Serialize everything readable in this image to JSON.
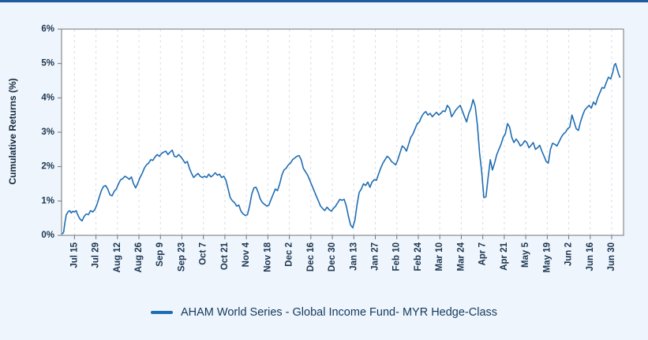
{
  "page": {
    "background_color": "#eef5fc",
    "accent_border_color": "#1e5c9e"
  },
  "chart_data": {
    "type": "line",
    "title": "",
    "xlabel": "",
    "ylabel": "Cumulative Returns (%)",
    "ylim": [
      0,
      6
    ],
    "yticks": [
      0,
      1,
      2,
      3,
      4,
      5,
      6
    ],
    "ytick_labels": [
      "0%",
      "1%",
      "2%",
      "3%",
      "4%",
      "5%",
      "6%"
    ],
    "xlim": [
      -0.6,
      25.55
    ],
    "x_tick_labels": [
      "Jul 15",
      "Jul 29",
      "Aug 12",
      "Aug 26",
      "Sep 9",
      "Sep 23",
      "Oct 7",
      "Oct 21",
      "Nov 4",
      "Nov 18",
      "Dec 2",
      "Dec 16",
      "Dec 30",
      "Jan 13",
      "Jan 27",
      "Feb 10",
      "Feb 24",
      "Mar 10",
      "Mar 24",
      "Apr 7",
      "Apr 21",
      "May 5",
      "May 19",
      "Jun 2",
      "Jun 16",
      "Jun 30"
    ],
    "grid": {
      "vertical_dashed": true,
      "horizontal": false,
      "color": "#d7dde2"
    },
    "axis": {
      "line_color": "#70757a",
      "label_color": "#1c3550"
    },
    "plot_background": "#ffffff",
    "legend_position": "bottom",
    "series": [
      {
        "name": "AHAM World Series - Global Income Fund- MYR Hedge-Class",
        "color": "#1f6db4",
        "points": [
          [
            -0.55,
            0.05
          ],
          [
            -0.5,
            0.1
          ],
          [
            -0.45,
            0.35
          ],
          [
            -0.38,
            0.6
          ],
          [
            -0.3,
            0.68
          ],
          [
            -0.22,
            0.72
          ],
          [
            -0.15,
            0.65
          ],
          [
            -0.08,
            0.7
          ],
          [
            0,
            0.68
          ],
          [
            0.08,
            0.72
          ],
          [
            0.15,
            0.6
          ],
          [
            0.25,
            0.48
          ],
          [
            0.35,
            0.42
          ],
          [
            0.45,
            0.55
          ],
          [
            0.55,
            0.62
          ],
          [
            0.65,
            0.6
          ],
          [
            0.75,
            0.72
          ],
          [
            0.85,
            0.68
          ],
          [
            0.95,
            0.75
          ],
          [
            1.05,
            0.9
          ],
          [
            1.15,
            1.1
          ],
          [
            1.25,
            1.3
          ],
          [
            1.35,
            1.42
          ],
          [
            1.45,
            1.45
          ],
          [
            1.55,
            1.35
          ],
          [
            1.65,
            1.18
          ],
          [
            1.75,
            1.15
          ],
          [
            1.85,
            1.28
          ],
          [
            1.95,
            1.35
          ],
          [
            2.05,
            1.5
          ],
          [
            2.15,
            1.62
          ],
          [
            2.25,
            1.65
          ],
          [
            2.35,
            1.72
          ],
          [
            2.45,
            1.68
          ],
          [
            2.55,
            1.63
          ],
          [
            2.65,
            1.7
          ],
          [
            2.75,
            1.5
          ],
          [
            2.85,
            1.38
          ],
          [
            2.95,
            1.52
          ],
          [
            3.05,
            1.68
          ],
          [
            3.15,
            1.8
          ],
          [
            3.25,
            1.95
          ],
          [
            3.35,
            2.05
          ],
          [
            3.45,
            2.1
          ],
          [
            3.55,
            2.2
          ],
          [
            3.65,
            2.18
          ],
          [
            3.75,
            2.28
          ],
          [
            3.85,
            2.35
          ],
          [
            3.95,
            2.3
          ],
          [
            4.05,
            2.38
          ],
          [
            4.15,
            2.42
          ],
          [
            4.25,
            2.45
          ],
          [
            4.35,
            2.35
          ],
          [
            4.45,
            2.42
          ],
          [
            4.55,
            2.48
          ],
          [
            4.65,
            2.3
          ],
          [
            4.75,
            2.28
          ],
          [
            4.85,
            2.35
          ],
          [
            4.95,
            2.28
          ],
          [
            5.05,
            2.2
          ],
          [
            5.15,
            2.1
          ],
          [
            5.25,
            2.15
          ],
          [
            5.35,
            1.95
          ],
          [
            5.45,
            1.8
          ],
          [
            5.55,
            1.68
          ],
          [
            5.65,
            1.75
          ],
          [
            5.75,
            1.8
          ],
          [
            5.85,
            1.72
          ],
          [
            5.95,
            1.68
          ],
          [
            6.05,
            1.72
          ],
          [
            6.15,
            1.68
          ],
          [
            6.25,
            1.78
          ],
          [
            6.35,
            1.7
          ],
          [
            6.45,
            1.75
          ],
          [
            6.55,
            1.82
          ],
          [
            6.65,
            1.75
          ],
          [
            6.75,
            1.78
          ],
          [
            6.85,
            1.68
          ],
          [
            6.95,
            1.72
          ],
          [
            7.05,
            1.6
          ],
          [
            7.15,
            1.35
          ],
          [
            7.25,
            1.1
          ],
          [
            7.35,
            1.0
          ],
          [
            7.45,
            0.95
          ],
          [
            7.55,
            0.85
          ],
          [
            7.65,
            0.88
          ],
          [
            7.75,
            0.7
          ],
          [
            7.85,
            0.62
          ],
          [
            7.95,
            0.58
          ],
          [
            8.05,
            0.6
          ],
          [
            8.15,
            0.85
          ],
          [
            8.25,
            1.2
          ],
          [
            8.35,
            1.38
          ],
          [
            8.45,
            1.4
          ],
          [
            8.55,
            1.25
          ],
          [
            8.65,
            1.05
          ],
          [
            8.75,
            0.95
          ],
          [
            8.85,
            0.9
          ],
          [
            8.95,
            0.85
          ],
          [
            9.05,
            0.88
          ],
          [
            9.15,
            1.05
          ],
          [
            9.25,
            1.2
          ],
          [
            9.35,
            1.35
          ],
          [
            9.45,
            1.3
          ],
          [
            9.55,
            1.5
          ],
          [
            9.65,
            1.75
          ],
          [
            9.75,
            1.9
          ],
          [
            9.85,
            1.95
          ],
          [
            9.95,
            2.05
          ],
          [
            10.05,
            2.1
          ],
          [
            10.15,
            2.2
          ],
          [
            10.25,
            2.25
          ],
          [
            10.35,
            2.3
          ],
          [
            10.45,
            2.32
          ],
          [
            10.55,
            2.2
          ],
          [
            10.65,
            1.95
          ],
          [
            10.75,
            1.85
          ],
          [
            10.85,
            1.75
          ],
          [
            10.95,
            1.6
          ],
          [
            11.05,
            1.45
          ],
          [
            11.15,
            1.3
          ],
          [
            11.25,
            1.15
          ],
          [
            11.35,
            1.0
          ],
          [
            11.45,
            0.85
          ],
          [
            11.55,
            0.78
          ],
          [
            11.65,
            0.72
          ],
          [
            11.75,
            0.82
          ],
          [
            11.85,
            0.75
          ],
          [
            11.95,
            0.7
          ],
          [
            12.05,
            0.78
          ],
          [
            12.15,
            0.85
          ],
          [
            12.25,
            0.95
          ],
          [
            12.35,
            1.05
          ],
          [
            12.45,
            1.02
          ],
          [
            12.55,
            1.05
          ],
          [
            12.65,
            0.85
          ],
          [
            12.75,
            0.55
          ],
          [
            12.85,
            0.3
          ],
          [
            12.95,
            0.22
          ],
          [
            13.05,
            0.45
          ],
          [
            13.15,
            0.9
          ],
          [
            13.25,
            1.25
          ],
          [
            13.35,
            1.35
          ],
          [
            13.45,
            1.5
          ],
          [
            13.55,
            1.45
          ],
          [
            13.65,
            1.55
          ],
          [
            13.75,
            1.4
          ],
          [
            13.85,
            1.55
          ],
          [
            13.95,
            1.62
          ],
          [
            14.05,
            1.6
          ],
          [
            14.15,
            1.78
          ],
          [
            14.25,
            1.95
          ],
          [
            14.35,
            2.1
          ],
          [
            14.45,
            2.2
          ],
          [
            14.55,
            2.3
          ],
          [
            14.65,
            2.25
          ],
          [
            14.75,
            2.15
          ],
          [
            14.85,
            2.1
          ],
          [
            14.95,
            2.05
          ],
          [
            15.05,
            2.2
          ],
          [
            15.15,
            2.4
          ],
          [
            15.25,
            2.6
          ],
          [
            15.35,
            2.55
          ],
          [
            15.45,
            2.45
          ],
          [
            15.55,
            2.65
          ],
          [
            15.65,
            2.85
          ],
          [
            15.75,
            2.95
          ],
          [
            15.85,
            3.1
          ],
          [
            15.95,
            3.25
          ],
          [
            16.05,
            3.3
          ],
          [
            16.15,
            3.45
          ],
          [
            16.25,
            3.55
          ],
          [
            16.35,
            3.6
          ],
          [
            16.45,
            3.5
          ],
          [
            16.55,
            3.55
          ],
          [
            16.65,
            3.45
          ],
          [
            16.75,
            3.52
          ],
          [
            16.85,
            3.58
          ],
          [
            16.95,
            3.5
          ],
          [
            17.05,
            3.55
          ],
          [
            17.15,
            3.62
          ],
          [
            17.25,
            3.6
          ],
          [
            17.35,
            3.78
          ],
          [
            17.45,
            3.7
          ],
          [
            17.55,
            3.45
          ],
          [
            17.65,
            3.55
          ],
          [
            17.75,
            3.65
          ],
          [
            17.85,
            3.72
          ],
          [
            17.95,
            3.78
          ],
          [
            18.05,
            3.62
          ],
          [
            18.15,
            3.45
          ],
          [
            18.25,
            3.3
          ],
          [
            18.35,
            3.55
          ],
          [
            18.45,
            3.7
          ],
          [
            18.55,
            3.95
          ],
          [
            18.65,
            3.75
          ],
          [
            18.75,
            3.2
          ],
          [
            18.85,
            2.4
          ],
          [
            18.95,
            1.85
          ],
          [
            19.05,
            1.1
          ],
          [
            19.15,
            1.12
          ],
          [
            19.25,
            1.7
          ],
          [
            19.35,
            2.2
          ],
          [
            19.45,
            1.9
          ],
          [
            19.55,
            2.1
          ],
          [
            19.65,
            2.35
          ],
          [
            19.75,
            2.5
          ],
          [
            19.85,
            2.65
          ],
          [
            19.95,
            2.85
          ],
          [
            20.05,
            2.95
          ],
          [
            20.15,
            3.25
          ],
          [
            20.25,
            3.15
          ],
          [
            20.35,
            2.85
          ],
          [
            20.45,
            2.7
          ],
          [
            20.55,
            2.8
          ],
          [
            20.65,
            2.72
          ],
          [
            20.75,
            2.6
          ],
          [
            20.85,
            2.65
          ],
          [
            20.95,
            2.75
          ],
          [
            21.05,
            2.7
          ],
          [
            21.15,
            2.55
          ],
          [
            21.25,
            2.62
          ],
          [
            21.35,
            2.7
          ],
          [
            21.45,
            2.5
          ],
          [
            21.55,
            2.55
          ],
          [
            21.65,
            2.62
          ],
          [
            21.75,
            2.45
          ],
          [
            21.85,
            2.3
          ],
          [
            21.95,
            2.15
          ],
          [
            22.05,
            2.1
          ],
          [
            22.15,
            2.5
          ],
          [
            22.25,
            2.68
          ],
          [
            22.35,
            2.65
          ],
          [
            22.45,
            2.6
          ],
          [
            22.55,
            2.72
          ],
          [
            22.65,
            2.85
          ],
          [
            22.75,
            2.95
          ],
          [
            22.85,
            3.0
          ],
          [
            22.95,
            3.1
          ],
          [
            23.05,
            3.15
          ],
          [
            23.15,
            3.5
          ],
          [
            23.25,
            3.3
          ],
          [
            23.35,
            3.1
          ],
          [
            23.45,
            3.05
          ],
          [
            23.55,
            3.3
          ],
          [
            23.65,
            3.5
          ],
          [
            23.75,
            3.65
          ],
          [
            23.85,
            3.72
          ],
          [
            23.95,
            3.78
          ],
          [
            24.05,
            3.7
          ],
          [
            24.15,
            3.88
          ],
          [
            24.25,
            3.8
          ],
          [
            24.35,
            4.0
          ],
          [
            24.45,
            4.15
          ],
          [
            24.55,
            4.3
          ],
          [
            24.65,
            4.28
          ],
          [
            24.75,
            4.45
          ],
          [
            24.85,
            4.6
          ],
          [
            24.95,
            4.55
          ],
          [
            25.05,
            4.75
          ],
          [
            25.12,
            4.95
          ],
          [
            25.18,
            5.0
          ],
          [
            25.25,
            4.85
          ],
          [
            25.32,
            4.7
          ],
          [
            25.38,
            4.6
          ]
        ]
      }
    ]
  }
}
